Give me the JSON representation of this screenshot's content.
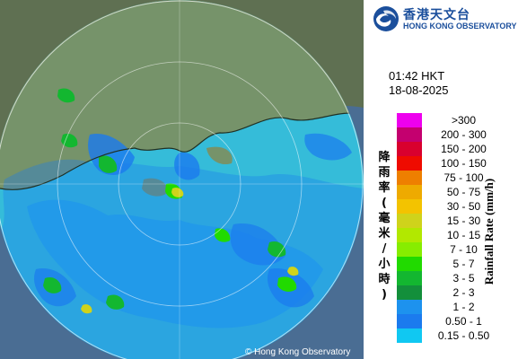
{
  "header": {
    "org_name_cn": "香港天文台",
    "org_name_en": "HONG KONG OBSERVATORY"
  },
  "timestamp": {
    "time": "01:42 HKT",
    "date": "18-08-2025"
  },
  "legend": {
    "unit_label_cn": "降雨率(毫米/小時)",
    "unit_label_en": "Rainfall Rate (mm/h)",
    "levels": [
      {
        "label": ">300",
        "color": "#ee00ee"
      },
      {
        "label": "200 - 300",
        "color": "#c4006f"
      },
      {
        "label": "150 - 200",
        "color": "#d9002e"
      },
      {
        "label": "100 - 150",
        "color": "#ef0b00"
      },
      {
        "label": "75 - 100",
        "color": "#ee7f00"
      },
      {
        "label": "50 - 75",
        "color": "#eeaa00"
      },
      {
        "label": "30 - 50",
        "color": "#f3c300"
      },
      {
        "label": "15 - 30",
        "color": "#cfd31b"
      },
      {
        "label": "10 - 15",
        "color": "#b2e800"
      },
      {
        "label": "7 - 10",
        "color": "#87ed00"
      },
      {
        "label": "5 - 7",
        "color": "#21da00"
      },
      {
        "label": "3 - 5",
        "color": "#13b730"
      },
      {
        "label": "2 - 3",
        "color": "#138f3b"
      },
      {
        "label": "1 - 2",
        "color": "#1d92ee"
      },
      {
        "label": "0.50 - 1",
        "color": "#1b7bee"
      },
      {
        "label": "0.15 - 0.50",
        "color": "#10c8f2"
      }
    ]
  },
  "map": {
    "copyright": "© Hong Kong Observatory",
    "land_color": "#6e8a64",
    "sea_color": "#35bcd9",
    "outer_sea_color": "#4a6d93"
  }
}
